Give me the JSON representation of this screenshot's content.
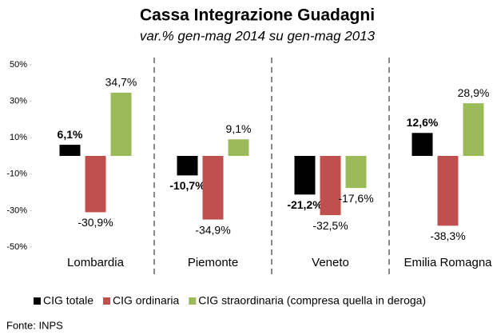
{
  "chart_data": {
    "type": "bar",
    "title": "Cassa Integrazione Guadagni",
    "subtitle": "var.% gen-mag 2014 su gen-mag 2013",
    "categories": [
      "Lombardia",
      "Piemonte",
      "Veneto",
      "Emilia Romagna"
    ],
    "series": [
      {
        "name": "CIG totale",
        "color": "#000000",
        "values": [
          6.1,
          -10.7,
          -21.2,
          12.6
        ],
        "value_labels": [
          "6,1%",
          "-10,7%",
          "-21,2%",
          "12,6%"
        ]
      },
      {
        "name": "CIG ordinaria",
        "color": "#c0504d",
        "values": [
          -30.9,
          -34.9,
          -32.5,
          -38.3
        ],
        "value_labels": [
          "-30,9%",
          "-34,9%",
          "-32,5%",
          "-38,3%"
        ]
      },
      {
        "name": "CIG straordinaria (compresa quella in deroga)",
        "color": "#9bbb59",
        "values": [
          34.7,
          9.1,
          -17.6,
          28.9
        ],
        "value_labels": [
          "34,7%",
          "9,1%",
          "-17,6%",
          "28,9%"
        ]
      }
    ],
    "ylim": [
      -50,
      50
    ],
    "yticks": [
      {
        "value": -50,
        "label": "-50%"
      },
      {
        "value": -30,
        "label": "-30%"
      },
      {
        "value": -10,
        "label": "-10%"
      },
      {
        "value": 10,
        "label": "10%"
      },
      {
        "value": 30,
        "label": "30%"
      },
      {
        "value": 50,
        "label": "50%"
      }
    ],
    "legend": "bottom",
    "source": "Fonte: INPS"
  }
}
